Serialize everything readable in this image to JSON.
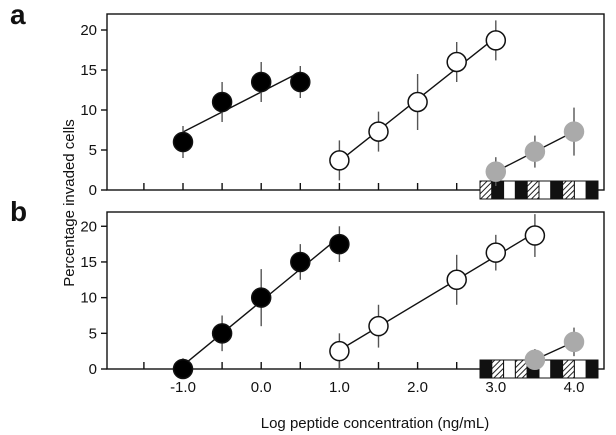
{
  "chart_data": {
    "type": "scatter",
    "xlabel": "Log peptide concentration (ng/mL)",
    "ylabel": "Percentage invaded cells",
    "xlim": [
      -2.0,
      4.2
    ],
    "ylim": [
      0,
      22
    ],
    "x_ticks_major": [
      -1.0,
      0.0,
      1.0,
      2.0,
      3.0,
      4.0
    ],
    "x_tick_labels": [
      "-1.0",
      "0.0",
      "1.0",
      "2.0",
      "3.0",
      "4.0"
    ],
    "x_ticks_minor": [
      -1.5,
      -0.5,
      0.5,
      1.5,
      2.5,
      3.5
    ],
    "y_ticks": [
      0,
      5,
      10,
      15,
      20
    ],
    "y_tick_labels": [
      "0",
      "5",
      "10",
      "15",
      "20"
    ],
    "grid": false,
    "colors": {
      "filled": "#000000",
      "open": "#ffffff",
      "gray": "#aaaaaa"
    },
    "panels": [
      {
        "label": "a",
        "series": [
          {
            "marker": "filled",
            "x": [
              -1.0,
              -0.5,
              0.0,
              0.5
            ],
            "y": [
              6.0,
              11.0,
              13.5,
              13.5
            ],
            "err": [
              2.0,
              2.5,
              2.5,
              2.0
            ]
          },
          {
            "marker": "open",
            "x": [
              1.0,
              1.5,
              2.0,
              2.5,
              3.0
            ],
            "y": [
              3.7,
              7.3,
              11.0,
              16.0,
              18.7
            ],
            "err": [
              2.5,
              2.5,
              3.5,
              2.5,
              2.5
            ]
          },
          {
            "marker": "gray",
            "x": [
              3.0,
              3.5,
              4.0
            ],
            "y": [
              2.3,
              4.8,
              7.3
            ],
            "err": [
              1.8,
              2.0,
              3.0
            ]
          }
        ],
        "bar_pattern": [
          "hatch",
          "black",
          "white",
          "black",
          "hatch",
          "white",
          "black",
          "hatch",
          "white",
          "black"
        ]
      },
      {
        "label": "b",
        "series": [
          {
            "marker": "filled",
            "x": [
              -1.0,
              -0.5,
              0.0,
              0.5,
              1.0
            ],
            "y": [
              0.0,
              5.0,
              10.0,
              15.0,
              17.5
            ],
            "err": [
              1.5,
              2.5,
              4.0,
              2.5,
              2.5
            ]
          },
          {
            "marker": "open",
            "x": [
              1.0,
              1.5,
              2.5,
              3.0,
              3.5
            ],
            "y": [
              2.5,
              6.0,
              12.5,
              16.3,
              18.7
            ],
            "err": [
              2.5,
              3.0,
              3.5,
              2.5,
              3.0
            ]
          },
          {
            "marker": "gray",
            "x": [
              3.5,
              4.0
            ],
            "y": [
              1.3,
              3.8
            ],
            "err": [
              1.5,
              2.0
            ]
          }
        ],
        "bar_pattern": [
          "black",
          "hatch",
          "white",
          "hatch",
          "black",
          "white",
          "black",
          "hatch",
          "white",
          "black"
        ]
      }
    ]
  }
}
